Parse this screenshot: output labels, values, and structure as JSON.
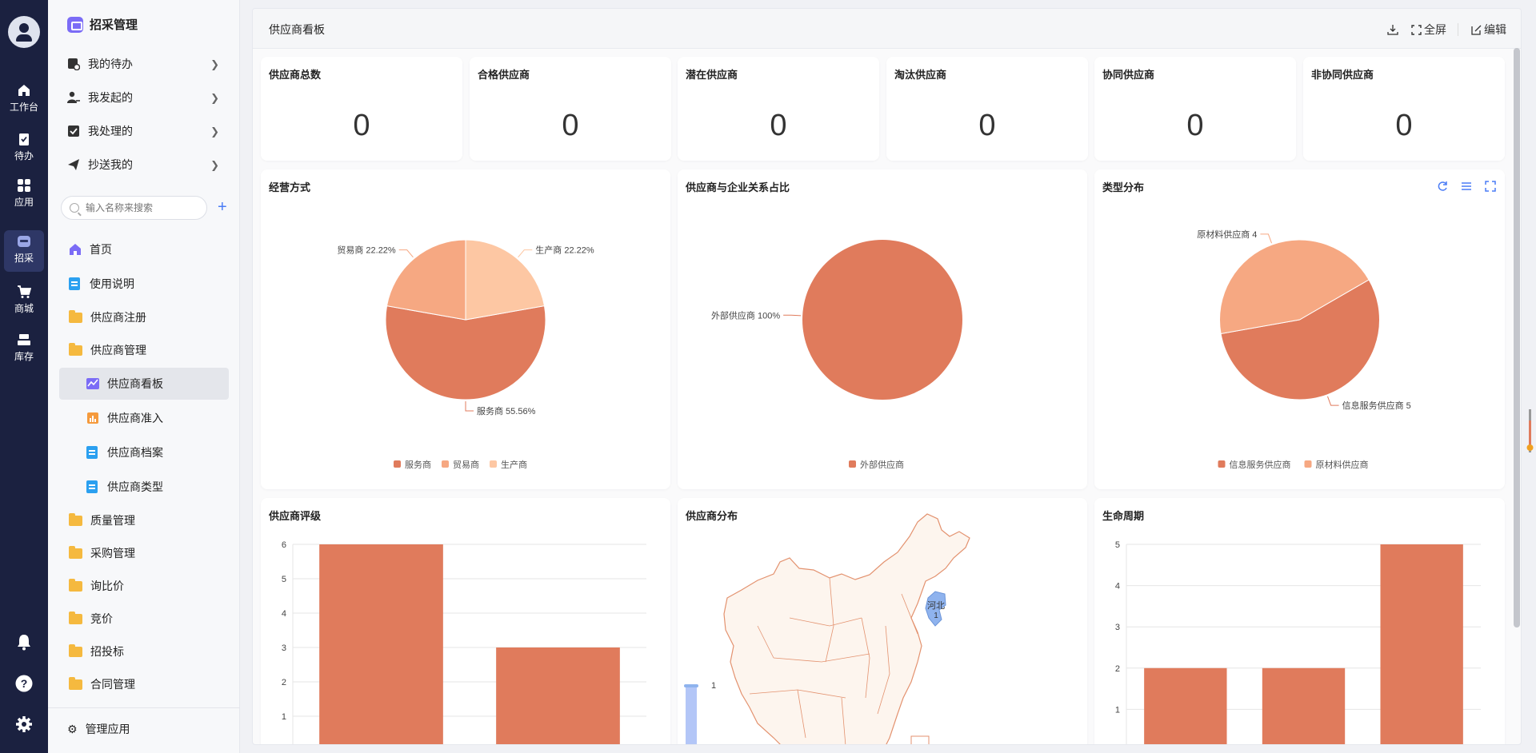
{
  "rail": {
    "items": [
      {
        "label": "工作台",
        "icon": "home-icon"
      },
      {
        "label": "待办",
        "icon": "clipboard-check-icon"
      },
      {
        "label": "应用",
        "icon": "apps-grid-icon"
      },
      {
        "label": "招采",
        "icon": "procurement-icon"
      },
      {
        "label": "商城",
        "icon": "cart-icon"
      },
      {
        "label": "库存",
        "icon": "inventory-icon"
      }
    ],
    "bottom_icons": [
      "bell-icon",
      "help-icon",
      "gear-icon"
    ]
  },
  "sidebar": {
    "title": "招采管理",
    "quick": [
      {
        "label": "我的待办",
        "icon": "todo-icon"
      },
      {
        "label": "我发起的",
        "icon": "user-send-icon"
      },
      {
        "label": "我处理的",
        "icon": "check-box-icon"
      },
      {
        "label": "抄送我的",
        "icon": "paper-plane-icon"
      }
    ],
    "search_placeholder": "输入名称来搜索",
    "nav": [
      {
        "label": "首页",
        "icon": "home-icon"
      },
      {
        "label": "使用说明",
        "icon": "doc-icon"
      },
      {
        "label": "供应商注册",
        "icon": "folder-icon"
      },
      {
        "label": "供应商管理",
        "icon": "folder-open-icon"
      },
      {
        "label": "供应商看板",
        "icon": "chart-line-icon"
      },
      {
        "label": "供应商准入",
        "icon": "chart-bar-icon"
      },
      {
        "label": "供应商档案",
        "icon": "doc-icon"
      },
      {
        "label": "供应商类型",
        "icon": "doc-icon"
      },
      {
        "label": "质量管理",
        "icon": "folder-icon"
      },
      {
        "label": "采购管理",
        "icon": "folder-icon"
      },
      {
        "label": "询比价",
        "icon": "folder-icon"
      },
      {
        "label": "竞价",
        "icon": "folder-icon"
      },
      {
        "label": "招投标",
        "icon": "folder-icon"
      },
      {
        "label": "合同管理",
        "icon": "folder-icon"
      }
    ],
    "footer": "管理应用"
  },
  "header": {
    "title": "供应商看板",
    "fullscreen": "全屏",
    "edit": "编辑"
  },
  "stats": [
    {
      "label": "供应商总数",
      "value": "0"
    },
    {
      "label": "合格供应商",
      "value": "0"
    },
    {
      "label": "潜在供应商",
      "value": "0"
    },
    {
      "label": "淘汰供应商",
      "value": "0"
    },
    {
      "label": "协同供应商",
      "value": "0"
    },
    {
      "label": "非协同供应商",
      "value": "0"
    }
  ],
  "charts_titles": {
    "mode": "经营方式",
    "relation": "供应商与企业关系占比",
    "type": "类型分布",
    "rating": "供应商评级",
    "map": "供应商分布",
    "lifecycle": "生命周期"
  },
  "colors": {
    "c1": "#e07b5c",
    "c2": "#f6a882",
    "c3": "#fdc7a3",
    "map_highlight": "#8fb3ee",
    "map_stroke": "#e3926f",
    "map_fill": "#fdf5ee"
  },
  "chart_data": [
    {
      "type": "pie",
      "title": "经营方式",
      "slices": [
        {
          "name": "服务商",
          "value": 55.56,
          "label": "服务商 55.56%"
        },
        {
          "name": "贸易商",
          "value": 22.22,
          "label": "贸易商 22.22%"
        },
        {
          "name": "生产商",
          "value": 22.22,
          "label": "生产商 22.22%"
        }
      ],
      "legend": [
        "服务商",
        "贸易商",
        "生产商"
      ],
      "legend_position": "bottom"
    },
    {
      "type": "pie",
      "title": "供应商与企业关系占比",
      "slices": [
        {
          "name": "外部供应商",
          "value": 100,
          "label": "外部供应商 100%"
        }
      ],
      "legend": [
        "外部供应商"
      ],
      "legend_position": "bottom"
    },
    {
      "type": "pie",
      "title": "类型分布",
      "slices": [
        {
          "name": "信息服务供应商",
          "value": 5,
          "label": "信息服务供应商 5"
        },
        {
          "name": "原材料供应商",
          "value": 4,
          "label": "原材料供应商 4"
        }
      ],
      "legend": [
        "信息服务供应商",
        "原材料供应商"
      ],
      "legend_position": "bottom"
    },
    {
      "type": "bar",
      "title": "供应商评级",
      "values": [
        6,
        3
      ],
      "ylim": [
        0,
        6
      ],
      "yticks": [
        "0",
        "1",
        "2",
        "3",
        "4",
        "5",
        "6"
      ],
      "grid": true
    },
    {
      "type": "map",
      "title": "供应商分布",
      "regions": [
        {
          "name": "河北",
          "value": 1
        }
      ],
      "visual_max": 1
    },
    {
      "type": "bar",
      "title": "生命周期",
      "values": [
        2,
        2,
        5
      ],
      "ylim": [
        0,
        5
      ],
      "yticks": [
        "0",
        "1",
        "2",
        "3",
        "4",
        "5"
      ],
      "grid": true
    }
  ]
}
